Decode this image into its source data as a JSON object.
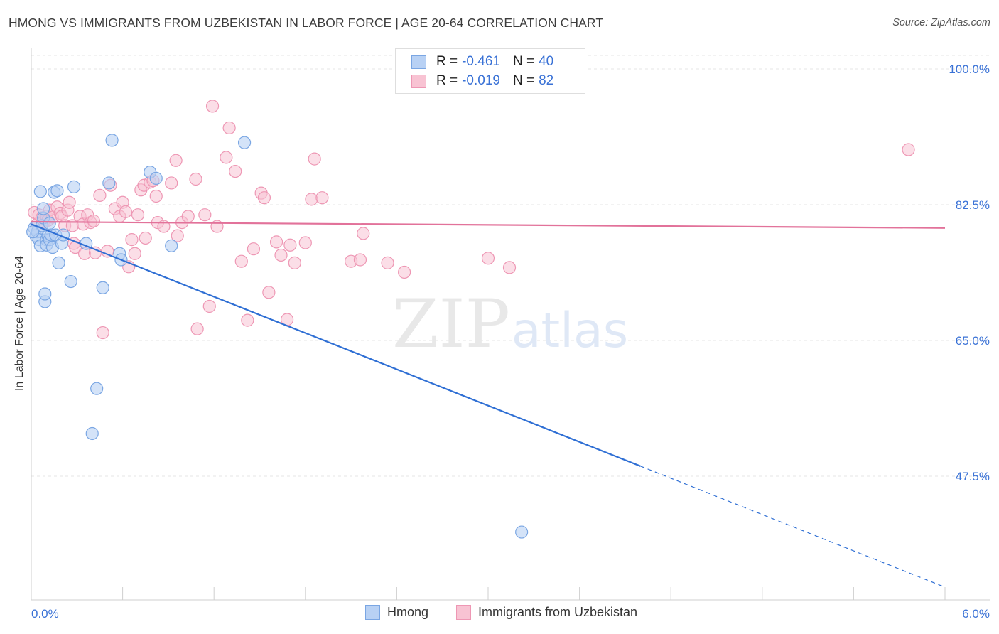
{
  "title": "HMONG VS IMMIGRANTS FROM UZBEKISTAN IN LABOR FORCE | AGE 20-64 CORRELATION CHART",
  "source": "Source: ZipAtlas.com",
  "watermark": {
    "zip": "ZIP",
    "atlas": "atlas"
  },
  "colors": {
    "hmong_fill": "#b8d1f4",
    "hmong_stroke": "#7aa6e3",
    "hmong_line": "#2f6fd4",
    "uzbek_fill": "#f8c3d3",
    "uzbek_stroke": "#ee97b4",
    "uzbek_line": "#e2729a",
    "axis_label": "#3a72d6",
    "grid": "#e4e4e4"
  },
  "legend": {
    "rows": [
      {
        "series": "hmong",
        "r_label": "R =",
        "r_value": "-0.461",
        "n_label": "N =",
        "n_value": "40"
      },
      {
        "series": "uzbek",
        "r_label": "R =",
        "r_value": "-0.019",
        "n_label": "N =",
        "n_value": "82"
      }
    ]
  },
  "chart_data": {
    "type": "scatter",
    "title": "HMONG VS IMMIGRANTS FROM UZBEKISTAN IN LABOR FORCE | AGE 20-64 CORRELATION CHART",
    "xlabel": "",
    "ylabel": "In Labor Force | Age 20-64",
    "xlim": [
      0,
      6
    ],
    "ylim": [
      31,
      102
    ],
    "x_tick_labels": [
      "0.0%",
      "6.0%"
    ],
    "y_ticks": [
      100.0,
      82.5,
      65.0,
      47.5
    ],
    "y_tick_labels": [
      "100.0%",
      "82.5%",
      "65.0%",
      "47.5%"
    ],
    "grid": true,
    "legend_position": "top-center",
    "series": [
      {
        "name": "Hmong",
        "r": -0.461,
        "n": 40,
        "trend": {
          "x0": 0.0,
          "y0": 80.0,
          "x_solid_end": 4.0,
          "x_end": 6.0,
          "y_end": 33.2
        },
        "points": [
          [
            0.02,
            79.5
          ],
          [
            0.03,
            78.5
          ],
          [
            0.04,
            79.0
          ],
          [
            0.05,
            78.0
          ],
          [
            0.06,
            84.2
          ],
          [
            0.06,
            77.2
          ],
          [
            0.07,
            79.8
          ],
          [
            0.08,
            80.8
          ],
          [
            0.08,
            82.0
          ],
          [
            0.09,
            70.0
          ],
          [
            0.09,
            71.0
          ],
          [
            0.1,
            78.0
          ],
          [
            0.1,
            77.3
          ],
          [
            0.11,
            78.5
          ],
          [
            0.12,
            80.1
          ],
          [
            0.12,
            78.0
          ],
          [
            0.13,
            78.6
          ],
          [
            0.14,
            77.0
          ],
          [
            0.15,
            84.1
          ],
          [
            0.16,
            78.6
          ],
          [
            0.17,
            84.3
          ],
          [
            0.18,
            75.0
          ],
          [
            0.2,
            77.5
          ],
          [
            0.21,
            78.6
          ],
          [
            0.26,
            72.6
          ],
          [
            0.28,
            84.8
          ],
          [
            0.36,
            77.5
          ],
          [
            0.4,
            53.0
          ],
          [
            0.43,
            58.8
          ],
          [
            0.47,
            71.8
          ],
          [
            0.51,
            85.3
          ],
          [
            0.53,
            90.8
          ],
          [
            0.58,
            76.2
          ],
          [
            0.59,
            75.4
          ],
          [
            0.78,
            86.7
          ],
          [
            0.82,
            85.9
          ],
          [
            0.92,
            77.2
          ],
          [
            1.4,
            90.5
          ],
          [
            3.22,
            40.3
          ],
          [
            0.01,
            79.0
          ]
        ]
      },
      {
        "name": "Immigrants from Uzbekistan",
        "r": -0.019,
        "n": 82,
        "trend": {
          "x0": 0.0,
          "y0": 80.3,
          "x_end": 6.0,
          "y_end": 79.5
        },
        "points": [
          [
            0.02,
            81.5
          ],
          [
            0.04,
            80.0
          ],
          [
            0.05,
            81.2
          ],
          [
            0.07,
            80.8
          ],
          [
            0.08,
            80.3
          ],
          [
            0.1,
            81.0
          ],
          [
            0.11,
            80.5
          ],
          [
            0.12,
            81.8
          ],
          [
            0.14,
            80.9
          ],
          [
            0.17,
            82.2
          ],
          [
            0.19,
            81.4
          ],
          [
            0.2,
            81.0
          ],
          [
            0.22,
            79.8
          ],
          [
            0.24,
            81.8
          ],
          [
            0.25,
            82.8
          ],
          [
            0.27,
            79.8
          ],
          [
            0.28,
            77.5
          ],
          [
            0.29,
            77.0
          ],
          [
            0.32,
            81.0
          ],
          [
            0.34,
            80.0
          ],
          [
            0.35,
            76.2
          ],
          [
            0.37,
            81.2
          ],
          [
            0.39,
            80.2
          ],
          [
            0.41,
            80.4
          ],
          [
            0.42,
            76.3
          ],
          [
            0.45,
            83.7
          ],
          [
            0.47,
            66.0
          ],
          [
            0.5,
            76.5
          ],
          [
            0.52,
            85.0
          ],
          [
            0.55,
            82.0
          ],
          [
            0.58,
            81.0
          ],
          [
            0.6,
            82.8
          ],
          [
            0.62,
            81.6
          ],
          [
            0.64,
            74.5
          ],
          [
            0.66,
            78.0
          ],
          [
            0.68,
            76.2
          ],
          [
            0.7,
            81.2
          ],
          [
            0.72,
            84.4
          ],
          [
            0.74,
            85.0
          ],
          [
            0.75,
            78.2
          ],
          [
            0.78,
            85.4
          ],
          [
            0.8,
            85.6
          ],
          [
            0.82,
            83.6
          ],
          [
            0.83,
            80.2
          ],
          [
            0.87,
            79.7
          ],
          [
            0.92,
            85.3
          ],
          [
            0.95,
            88.2
          ],
          [
            0.96,
            78.5
          ],
          [
            0.99,
            80.2
          ],
          [
            1.03,
            81.0
          ],
          [
            1.08,
            85.8
          ],
          [
            1.09,
            66.5
          ],
          [
            1.14,
            81.2
          ],
          [
            1.17,
            69.4
          ],
          [
            1.19,
            95.2
          ],
          [
            1.22,
            79.7
          ],
          [
            1.28,
            88.6
          ],
          [
            1.3,
            92.4
          ],
          [
            1.34,
            86.8
          ],
          [
            1.38,
            75.2
          ],
          [
            1.42,
            67.6
          ],
          [
            1.46,
            76.8
          ],
          [
            1.51,
            84.0
          ],
          [
            1.53,
            83.4
          ],
          [
            1.56,
            71.2
          ],
          [
            1.61,
            77.7
          ],
          [
            1.64,
            76.0
          ],
          [
            1.68,
            67.7
          ],
          [
            1.7,
            77.3
          ],
          [
            1.73,
            75.0
          ],
          [
            1.8,
            77.6
          ],
          [
            1.84,
            83.2
          ],
          [
            1.86,
            88.4
          ],
          [
            1.91,
            83.4
          ],
          [
            2.1,
            75.2
          ],
          [
            2.16,
            75.4
          ],
          [
            2.18,
            78.8
          ],
          [
            2.34,
            75.0
          ],
          [
            2.45,
            73.8
          ],
          [
            3.0,
            75.6
          ],
          [
            3.14,
            74.4
          ],
          [
            5.76,
            89.6
          ]
        ]
      }
    ]
  },
  "bottom_legend": {
    "hmong": "Hmong",
    "uzbek": "Immigrants from Uzbekistan"
  }
}
